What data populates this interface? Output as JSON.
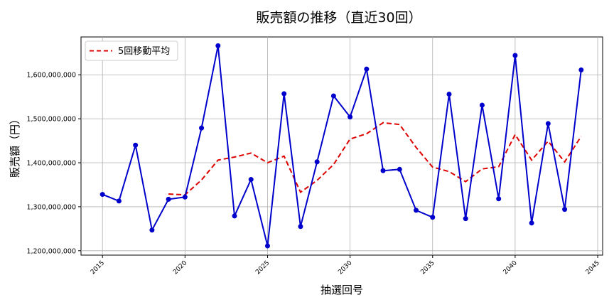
{
  "chart_data": {
    "type": "line",
    "title": "販売額の推移（直近30回）",
    "xlabel": "抽選回号",
    "ylabel": "販売額（円）",
    "xlim": [
      2013.7,
      2045.3
    ],
    "ylim": [
      1190000000,
      1686000000
    ],
    "x_ticks": [
      2015,
      2020,
      2025,
      2030,
      2035,
      2040,
      2045
    ],
    "x_tick_labels": [
      "2015",
      "2020",
      "2025",
      "2030",
      "2035",
      "2040",
      "2045"
    ],
    "y_ticks": [
      1200000000,
      1300000000,
      1400000000,
      1500000000,
      1600000000
    ],
    "y_tick_labels": [
      "1,200,000,000",
      "1,300,000,000",
      "1,400,000,000",
      "1,500,000,000",
      "1,600,000,000"
    ],
    "grid": true,
    "legend_position": "top-left",
    "series": [
      {
        "name": "",
        "style": "solid-with-markers",
        "color": "#0000cc",
        "x": [
          2015,
          2016,
          2017,
          2018,
          2019,
          2020,
          2021,
          2022,
          2023,
          2024,
          2025,
          2026,
          2027,
          2028,
          2029,
          2030,
          2031,
          2032,
          2033,
          2034,
          2035,
          2036,
          2037,
          2038,
          2039,
          2040,
          2041,
          2042,
          2043,
          2044
        ],
        "values": [
          1328000000,
          1313000000,
          1440000000,
          1247000000,
          1317000000,
          1322000000,
          1479000000,
          1666000000,
          1279000000,
          1362000000,
          1211000000,
          1557000000,
          1255000000,
          1402000000,
          1552000000,
          1504000000,
          1613000000,
          1382000000,
          1385000000,
          1292000000,
          1276000000,
          1556000000,
          1273000000,
          1531000000,
          1318000000,
          1644000000,
          1263000000,
          1489000000,
          1294000000,
          1611000000
        ]
      },
      {
        "name": "5回移動平均",
        "style": "dashed",
        "color": "#dd0000",
        "x": [
          2019,
          2020,
          2021,
          2022,
          2023,
          2024,
          2025,
          2026,
          2027,
          2028,
          2029,
          2030,
          2031,
          2032,
          2033,
          2034,
          2035,
          2036,
          2037,
          2038,
          2039,
          2040,
          2041,
          2042,
          2043,
          2044
        ],
        "values": [
          1329000000,
          1327000000,
          1361000000,
          1406000000,
          1413000000,
          1422000000,
          1400000000,
          1415000000,
          1333000000,
          1360000000,
          1396000000,
          1454000000,
          1466000000,
          1491000000,
          1487000000,
          1435000000,
          1390000000,
          1380000000,
          1357000000,
          1386000000,
          1391000000,
          1464000000,
          1406000000,
          1449000000,
          1402000000,
          1460000000
        ]
      }
    ]
  }
}
